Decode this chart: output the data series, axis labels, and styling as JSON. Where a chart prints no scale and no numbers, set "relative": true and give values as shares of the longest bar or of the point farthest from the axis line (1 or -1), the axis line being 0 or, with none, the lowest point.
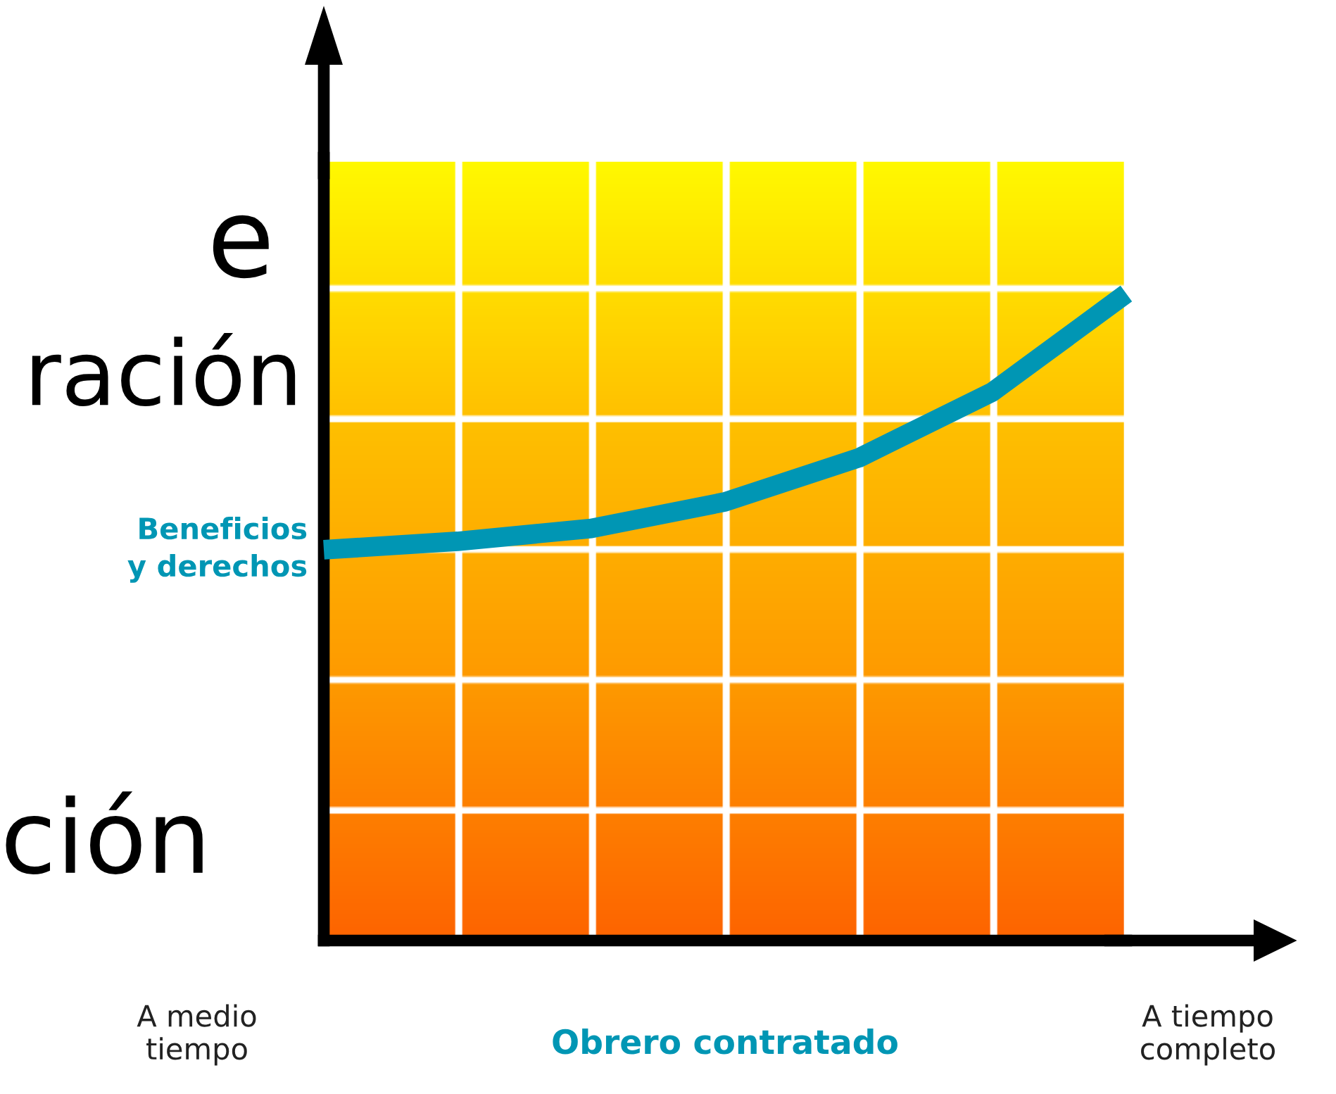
{
  "chart_data": {
    "type": "line",
    "relative": true,
    "categories": [
      null,
      null,
      null,
      null,
      null,
      null,
      null
    ],
    "series": [
      {
        "name": "Beneficios y derechos",
        "color": "#0096b4",
        "values": [
          0.604,
          0.617,
          0.637,
          0.678,
          0.746,
          0.848,
          1.0
        ]
      }
    ],
    "xlabel": "Obrero contratado",
    "annotations": [
      "e",
      "ración",
      "ción",
      "A medio tiempo",
      "A tiempo completo"
    ],
    "legend": false
  }
}
